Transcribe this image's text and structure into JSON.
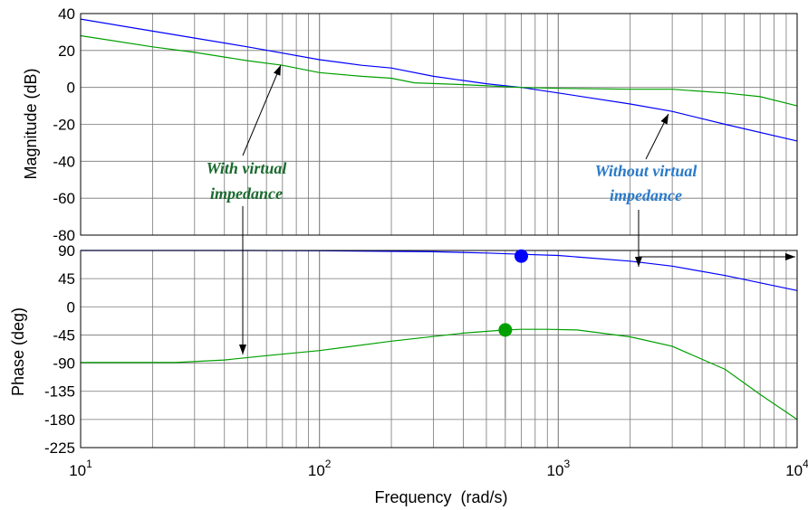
{
  "chart_data": [
    {
      "type": "line",
      "xscale": "log",
      "xlim": [
        10,
        10000
      ],
      "ylim": [
        -80,
        40
      ],
      "yticks": [
        40,
        20,
        0,
        -20,
        -40,
        -60,
        -80
      ],
      "ylabel": "Magnitude (dB)",
      "grid": true,
      "series": [
        {
          "color": "#0000ff",
          "points": [
            [
              10,
              37
            ],
            [
              20,
              30.5
            ],
            [
              50,
              22
            ],
            [
              100,
              15
            ],
            [
              150,
              12
            ],
            [
              200,
              10.5
            ],
            [
              300,
              6
            ],
            [
              500,
              2
            ],
            [
              700,
              0
            ],
            [
              1000,
              -3
            ],
            [
              2000,
              -9
            ],
            [
              3000,
              -13
            ],
            [
              5000,
              -20
            ],
            [
              10000,
              -29
            ]
          ]
        },
        {
          "color": "#00a000",
          "points": [
            [
              10,
              28
            ],
            [
              20,
              22
            ],
            [
              30,
              19
            ],
            [
              50,
              14.5
            ],
            [
              70,
              12
            ],
            [
              100,
              8
            ],
            [
              150,
              6
            ],
            [
              200,
              5
            ],
            [
              250,
              2.5
            ],
            [
              400,
              1.5
            ],
            [
              700,
              0
            ],
            [
              1000,
              -0.5
            ],
            [
              2000,
              -1
            ],
            [
              3000,
              -1
            ],
            [
              5000,
              -3
            ],
            [
              7000,
              -5
            ],
            [
              10000,
              -10
            ]
          ]
        }
      ],
      "annotations": [
        {
          "text_lines": [
            "With virtual",
            "impedance"
          ],
          "color": "#1a6a2e"
        },
        {
          "text_lines": [
            "Without virtual",
            "impedance"
          ],
          "color": "#2a7ac8"
        }
      ]
    },
    {
      "type": "line",
      "xscale": "log",
      "xlim": [
        10,
        10000
      ],
      "ylim": [
        -225,
        90
      ],
      "yticks": [
        90,
        45,
        0,
        -45,
        -90,
        -135,
        -180,
        -225
      ],
      "ylabel": "Phase (deg)",
      "xlabel": "Frequency  (rad/s)",
      "xticks": [
        {
          "base": "10",
          "exp": "1"
        },
        {
          "base": "10",
          "exp": "2"
        },
        {
          "base": "10",
          "exp": "3"
        },
        {
          "base": "10",
          "exp": "4"
        }
      ],
      "grid": true,
      "series": [
        {
          "color": "#0000ff",
          "points": [
            [
              10,
              90
            ],
            [
              50,
              90
            ],
            [
              100,
              89.5
            ],
            [
              300,
              88
            ],
            [
              500,
              86
            ],
            [
              700,
              84
            ],
            [
              1000,
              82
            ],
            [
              2000,
              73
            ],
            [
              3000,
              65
            ],
            [
              5000,
              50
            ],
            [
              10000,
              26
            ]
          ]
        },
        {
          "color": "#00a000",
          "points": [
            [
              10,
              -89
            ],
            [
              25,
              -89
            ],
            [
              40,
              -85
            ],
            [
              60,
              -78
            ],
            [
              100,
              -70
            ],
            [
              200,
              -55
            ],
            [
              400,
              -42
            ],
            [
              600,
              -37
            ],
            [
              700,
              -36
            ],
            [
              900,
              -36
            ],
            [
              1200,
              -37
            ],
            [
              2000,
              -48
            ],
            [
              3000,
              -63
            ],
            [
              5000,
              -100
            ],
            [
              7000,
              -140
            ],
            [
              10000,
              -180
            ]
          ]
        }
      ],
      "markers": [
        {
          "x": 700,
          "y": 81,
          "color": "#0000ff"
        },
        {
          "x": 600,
          "y": -37,
          "color": "#00a000"
        }
      ]
    }
  ]
}
